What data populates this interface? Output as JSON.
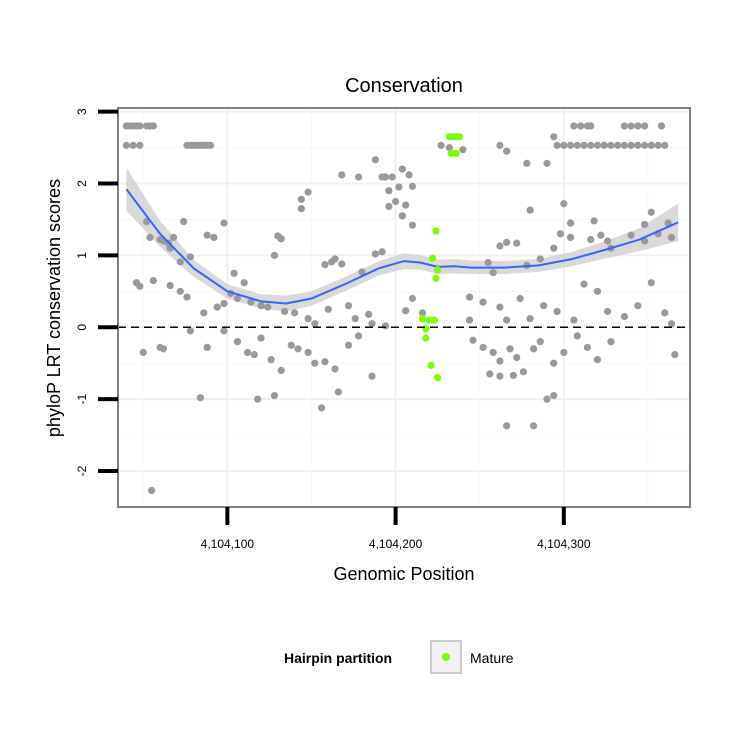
{
  "chart_data": {
    "type": "scatter",
    "title": "Conservation",
    "xlabel": "Genomic Position",
    "ylabel": "phyloP LRT conservation scores",
    "xlim": [
      4104035,
      4104375
    ],
    "ylim": [
      -2.5,
      3.05
    ],
    "x_ticks": [
      4104100,
      4104200,
      4104300
    ],
    "x_tick_labels": [
      "4,104,100",
      "4,104,200",
      "4,104,300"
    ],
    "y_ticks": [
      -2,
      -1,
      0,
      1,
      2,
      3
    ],
    "y_tick_labels": [
      "-2",
      "-1",
      "0",
      "1",
      "2",
      "3"
    ],
    "reference_line_y": 0,
    "grid": true,
    "legend": {
      "title": "Hairpin partition",
      "placement": "bottom",
      "entries": [
        {
          "label": "Mature",
          "color": "#7cfc00"
        }
      ]
    },
    "colors": {
      "other": "#999999",
      "mature": "#7cfc00",
      "smooth": "#3366ff",
      "band": "#cccccc"
    },
    "smooth": {
      "x": [
        4104040,
        4104060,
        4104080,
        4104100,
        4104120,
        4104135,
        4104150,
        4104170,
        4104190,
        4104205,
        4104215,
        4104225,
        4104235,
        4104245,
        4104265,
        4104285,
        4104305,
        4104325,
        4104345,
        4104368
      ],
      "y": [
        1.92,
        1.3,
        0.82,
        0.5,
        0.36,
        0.33,
        0.4,
        0.6,
        0.82,
        0.92,
        0.9,
        0.84,
        0.85,
        0.83,
        0.83,
        0.86,
        0.95,
        1.08,
        1.22,
        1.46
      ],
      "lower": [
        1.62,
        1.12,
        0.7,
        0.4,
        0.26,
        0.22,
        0.3,
        0.5,
        0.72,
        0.81,
        0.8,
        0.74,
        0.75,
        0.74,
        0.74,
        0.77,
        0.85,
        0.96,
        1.06,
        1.2
      ],
      "upper": [
        2.22,
        1.48,
        0.94,
        0.6,
        0.46,
        0.44,
        0.5,
        0.7,
        0.92,
        1.03,
        1.0,
        0.94,
        0.95,
        0.93,
        0.92,
        0.95,
        1.05,
        1.2,
        1.38,
        1.72
      ]
    },
    "series": [
      {
        "name": "Mature",
        "points": [
          [
            4104232,
            2.65
          ],
          [
            4104234,
            2.65
          ],
          [
            4104236,
            2.65
          ],
          [
            4104238,
            2.65
          ],
          [
            4104233,
            2.42
          ],
          [
            4104236,
            2.42
          ],
          [
            4104224,
            1.34
          ],
          [
            4104222,
            0.96
          ],
          [
            4104225,
            0.8
          ],
          [
            4104224,
            0.68
          ],
          [
            4104216,
            0.12
          ],
          [
            4104220,
            0.1
          ],
          [
            4104223,
            0.1
          ],
          [
            4104218,
            -0.02
          ],
          [
            4104218,
            -0.15
          ],
          [
            4104221,
            -0.53
          ],
          [
            4104225,
            -0.7
          ]
        ]
      },
      {
        "name": "",
        "points": [
          [
            4104040,
            2.8
          ],
          [
            4104042,
            2.8
          ],
          [
            4104044,
            2.8
          ],
          [
            4104046,
            2.8
          ],
          [
            4104048,
            2.8
          ],
          [
            4104052,
            2.8
          ],
          [
            4104054,
            2.8
          ],
          [
            4104056,
            2.8
          ],
          [
            4104040,
            2.53
          ],
          [
            4104044,
            2.53
          ],
          [
            4104048,
            2.53
          ],
          [
            4104076,
            2.53
          ],
          [
            4104078,
            2.53
          ],
          [
            4104080,
            2.53
          ],
          [
            4104082,
            2.53
          ],
          [
            4104084,
            2.53
          ],
          [
            4104086,
            2.53
          ],
          [
            4104088,
            2.53
          ],
          [
            4104090,
            2.53
          ],
          [
            4104227,
            2.53
          ],
          [
            4104240,
            2.47
          ],
          [
            4104262,
            2.53
          ],
          [
            4104296,
            2.53
          ],
          [
            4104300,
            2.53
          ],
          [
            4104304,
            2.53
          ],
          [
            4104308,
            2.53
          ],
          [
            4104312,
            2.53
          ],
          [
            4104316,
            2.53
          ],
          [
            4104320,
            2.53
          ],
          [
            4104324,
            2.53
          ],
          [
            4104328,
            2.53
          ],
          [
            4104332,
            2.53
          ],
          [
            4104336,
            2.53
          ],
          [
            4104340,
            2.53
          ],
          [
            4104344,
            2.53
          ],
          [
            4104348,
            2.53
          ],
          [
            4104352,
            2.53
          ],
          [
            4104356,
            2.53
          ],
          [
            4104360,
            2.53
          ],
          [
            4104306,
            2.8
          ],
          [
            4104310,
            2.8
          ],
          [
            4104314,
            2.8
          ],
          [
            4104316,
            2.8
          ],
          [
            4104336,
            2.8
          ],
          [
            4104340,
            2.8
          ],
          [
            4104344,
            2.8
          ],
          [
            4104348,
            2.8
          ],
          [
            4104358,
            2.8
          ],
          [
            4104294,
            2.65
          ],
          [
            4104266,
            2.45
          ],
          [
            4104278,
            2.28
          ],
          [
            4104290,
            2.28
          ],
          [
            4104232,
            2.5
          ],
          [
            4104188,
            2.33
          ],
          [
            4104168,
            2.12
          ],
          [
            4104178,
            2.09
          ],
          [
            4104192,
            2.09
          ],
          [
            4104194,
            2.09
          ],
          [
            4104198,
            2.09
          ],
          [
            4104204,
            2.2
          ],
          [
            4104208,
            2.12
          ],
          [
            4104210,
            1.96
          ],
          [
            4104202,
            1.95
          ],
          [
            4104196,
            1.9
          ],
          [
            4104200,
            1.75
          ],
          [
            4104196,
            1.68
          ],
          [
            4104204,
            1.55
          ],
          [
            4104148,
            1.88
          ],
          [
            4104144,
            1.78
          ],
          [
            4104144,
            1.65
          ],
          [
            4104206,
            1.7
          ],
          [
            4104210,
            1.42
          ],
          [
            4104280,
            1.63
          ],
          [
            4104300,
            1.72
          ],
          [
            4104304,
            1.45
          ],
          [
            4104318,
            1.48
          ],
          [
            4104348,
            1.43
          ],
          [
            4104352,
            1.6
          ],
          [
            4104362,
            1.45
          ],
          [
            4104052,
            1.47
          ],
          [
            4104054,
            1.25
          ],
          [
            4104060,
            1.22
          ],
          [
            4104062,
            1.2
          ],
          [
            4104065,
            1.17
          ],
          [
            4104068,
            1.25
          ],
          [
            4104074,
            1.47
          ],
          [
            4104088,
            1.28
          ],
          [
            4104092,
            1.25
          ],
          [
            4104098,
            1.45
          ],
          [
            4104066,
            1.1
          ],
          [
            4104072,
            0.91
          ],
          [
            4104078,
            0.98
          ],
          [
            4104104,
            0.75
          ],
          [
            4104110,
            0.62
          ],
          [
            4104128,
            1.0
          ],
          [
            4104130,
            1.27
          ],
          [
            4104132,
            1.23
          ],
          [
            4104158,
            0.87
          ],
          [
            4104162,
            0.91
          ],
          [
            4104164,
            0.95
          ],
          [
            4104168,
            0.88
          ],
          [
            4104180,
            0.77
          ],
          [
            4104188,
            1.02
          ],
          [
            4104192,
            1.05
          ],
          [
            4104210,
            0.4
          ],
          [
            4104244,
            0.42
          ],
          [
            4104255,
            0.9
          ],
          [
            4104258,
            0.76
          ],
          [
            4104262,
            1.13
          ],
          [
            4104266,
            1.18
          ],
          [
            4104272,
            1.17
          ],
          [
            4104278,
            0.86
          ],
          [
            4104286,
            0.95
          ],
          [
            4104294,
            1.1
          ],
          [
            4104298,
            1.3
          ],
          [
            4104304,
            1.25
          ],
          [
            4104316,
            1.22
          ],
          [
            4104322,
            1.28
          ],
          [
            4104326,
            1.2
          ],
          [
            4104328,
            1.1
          ],
          [
            4104340,
            1.28
          ],
          [
            4104348,
            1.2
          ],
          [
            4104356,
            1.3
          ],
          [
            4104364,
            1.25
          ],
          [
            4104056,
            0.65
          ],
          [
            4104066,
            0.58
          ],
          [
            4104072,
            0.5
          ],
          [
            4104076,
            0.42
          ],
          [
            4104086,
            0.2
          ],
          [
            4104094,
            0.28
          ],
          [
            4104098,
            0.33
          ],
          [
            4104102,
            0.47
          ],
          [
            4104106,
            0.4
          ],
          [
            4104114,
            0.35
          ],
          [
            4104120,
            0.3
          ],
          [
            4104124,
            0.28
          ],
          [
            4104134,
            0.22
          ],
          [
            4104140,
            0.2
          ],
          [
            4104148,
            0.12
          ],
          [
            4104152,
            0.05
          ],
          [
            4104160,
            0.25
          ],
          [
            4104172,
            0.3
          ],
          [
            4104176,
            0.12
          ],
          [
            4104184,
            0.18
          ],
          [
            4104186,
            0.05
          ],
          [
            4104194,
            0.02
          ],
          [
            4104206,
            0.23
          ],
          [
            4104216,
            0.2
          ],
          [
            4104244,
            0.1
          ],
          [
            4104252,
            0.35
          ],
          [
            4104262,
            0.28
          ],
          [
            4104266,
            0.1
          ],
          [
            4104274,
            0.4
          ],
          [
            4104280,
            0.12
          ],
          [
            4104288,
            0.3
          ],
          [
            4104296,
            0.22
          ],
          [
            4104306,
            0.1
          ],
          [
            4104312,
            0.6
          ],
          [
            4104320,
            0.5
          ],
          [
            4104326,
            0.22
          ],
          [
            4104336,
            0.15
          ],
          [
            4104344,
            0.3
          ],
          [
            4104352,
            0.62
          ],
          [
            4104360,
            0.2
          ],
          [
            4104364,
            0.05
          ],
          [
            4104048,
            0.57
          ],
          [
            4104046,
            0.62
          ],
          [
            4104050,
            -0.35
          ],
          [
            4104060,
            -0.28
          ],
          [
            4104062,
            -0.3
          ],
          [
            4104078,
            -0.05
          ],
          [
            4104088,
            -0.28
          ],
          [
            4104098,
            -0.05
          ],
          [
            4104106,
            -0.2
          ],
          [
            4104112,
            -0.35
          ],
          [
            4104116,
            -0.38
          ],
          [
            4104120,
            -0.15
          ],
          [
            4104126,
            -0.45
          ],
          [
            4104132,
            -0.6
          ],
          [
            4104138,
            -0.25
          ],
          [
            4104142,
            -0.3
          ],
          [
            4104148,
            -0.35
          ],
          [
            4104152,
            -0.5
          ],
          [
            4104158,
            -0.48
          ],
          [
            4104164,
            -0.58
          ],
          [
            4104172,
            -0.25
          ],
          [
            4104178,
            -0.12
          ],
          [
            4104186,
            -0.68
          ],
          [
            4104246,
            -0.18
          ],
          [
            4104252,
            -0.28
          ],
          [
            4104258,
            -0.35
          ],
          [
            4104262,
            -0.47
          ],
          [
            4104268,
            -0.3
          ],
          [
            4104272,
            -0.42
          ],
          [
            4104276,
            -0.62
          ],
          [
            4104282,
            -0.3
          ],
          [
            4104286,
            -0.2
          ],
          [
            4104294,
            -0.5
          ],
          [
            4104300,
            -0.35
          ],
          [
            4104308,
            -0.12
          ],
          [
            4104314,
            -0.28
          ],
          [
            4104320,
            -0.45
          ],
          [
            4104328,
            -0.2
          ],
          [
            4104366,
            -0.38
          ],
          [
            4104084,
            -0.98
          ],
          [
            4104118,
            -1.0
          ],
          [
            4104128,
            -0.95
          ],
          [
            4104156,
            -1.12
          ],
          [
            4104166,
            -0.9
          ],
          [
            4104256,
            -0.65
          ],
          [
            4104262,
            -0.68
          ],
          [
            4104270,
            -0.67
          ],
          [
            4104290,
            -1.0
          ],
          [
            4104294,
            -0.95
          ],
          [
            4104266,
            -1.37
          ],
          [
            4104282,
            -1.37
          ],
          [
            4104055,
            -2.27
          ]
        ]
      }
    ]
  }
}
